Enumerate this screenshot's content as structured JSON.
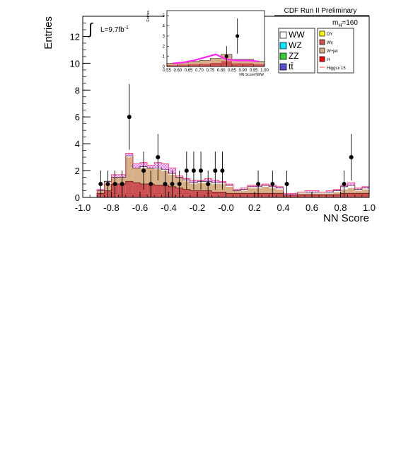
{
  "header": {
    "title": "CDF Run II Preliminary",
    "mass_label_prefix": "m",
    "mass_label_sub": "H",
    "mass_label_value": "=160",
    "lumi_prefix": "L=9.7fb",
    "lumi_sup": "-1"
  },
  "legend": {
    "left": [
      {
        "label": "WW",
        "color": "#ffffff"
      },
      {
        "label": "WZ",
        "color": "#00e5ff"
      },
      {
        "label": "ZZ",
        "color": "#33cc33"
      },
      {
        "label": "tt̄",
        "color": "#5050d0"
      }
    ],
    "right": [
      {
        "label": "DY",
        "color": "#ffff00"
      },
      {
        "label": "Wγ",
        "color": "#cc5050"
      },
      {
        "label": "W+jet",
        "color": "#d8b088"
      },
      {
        "label": "H",
        "color": "#ff0000"
      },
      {
        "label": "Higgsx 15",
        "color": "#ff4444"
      }
    ]
  },
  "chart_data": [
    {
      "type": "area",
      "title": "",
      "xlabel": "NN Score",
      "ylabel": "Entries",
      "xlim": [
        -1.0,
        1.0
      ],
      "ylim": [
        0,
        13.5
      ],
      "xticks": [
        "-1.0",
        "-0.8",
        "-0.6",
        "-0.4",
        "-0.2",
        "-0.0",
        "0.2",
        "0.4",
        "0.6",
        "0.8",
        "1.0"
      ],
      "yticks": [
        "0",
        "2",
        "4",
        "6",
        "8",
        "10",
        "12"
      ],
      "bin_width": 0.05,
      "bin_lo": [
        -0.9,
        -0.85,
        -0.8,
        -0.75,
        -0.7,
        -0.65,
        -0.6,
        -0.55,
        -0.5,
        -0.45,
        -0.4,
        -0.35,
        -0.3,
        -0.25,
        -0.2,
        -0.15,
        -0.1,
        -0.05,
        0.0,
        0.05,
        0.1,
        0.15,
        0.2,
        0.25,
        0.3,
        0.35,
        0.4,
        0.45,
        0.5,
        0.55,
        0.6,
        0.65,
        0.7,
        0.75,
        0.8,
        0.85,
        0.9,
        0.95
      ],
      "series": [
        {
          "name": "Wγ",
          "values": [
            0.3,
            0.5,
            1.0,
            1.0,
            1.2,
            1.1,
            1.0,
            1.0,
            0.9,
            0.9,
            0.8,
            0.7,
            0.6,
            0.5,
            0.5,
            0.5,
            0.4,
            0.4,
            0.3,
            0.3,
            0.3,
            0.3,
            0.3,
            0.3,
            0.3,
            0.3,
            0.2,
            0.2,
            0.2,
            0.2,
            0.2,
            0.2,
            0.2,
            0.2,
            0.3,
            0.3,
            0.3,
            0.3
          ]
        },
        {
          "name": "W+jet",
          "values": [
            0.2,
            0.5,
            0.5,
            0.5,
            1.8,
            1.1,
            1.2,
            1.2,
            1.2,
            1.1,
            0.9,
            0.8,
            0.6,
            0.5,
            0.6,
            0.6,
            0.6,
            0.6,
            0.5,
            0.2,
            0.2,
            0.4,
            0.4,
            0.5,
            0.4,
            0.3,
            0.0,
            0.0,
            0.1,
            0.1,
            0.1,
            0.1,
            0.1,
            0.2,
            0.3,
            0.4,
            0.2,
            0.3
          ]
        },
        {
          "name": "WW",
          "values": [
            0.0,
            0.2,
            0.0,
            0.0,
            0.1,
            0.0,
            0.1,
            0.0,
            0.1,
            0.1,
            0.1,
            0.0,
            0.1,
            0.1,
            0.1,
            0.1,
            0.1,
            0.1,
            0.1,
            0.0,
            0.1,
            0.1,
            0.1,
            0.1,
            0.1,
            0.1,
            0.0,
            0.0,
            0.1,
            0.1,
            0.1,
            0.1,
            0.1,
            0.1,
            0.2,
            0.2,
            0.1,
            0.1
          ]
        }
      ],
      "total_values": [
        0.5,
        1.2,
        1.5,
        1.5,
        3.1,
        2.2,
        2.3,
        2.2,
        2.2,
        2.1,
        1.8,
        1.5,
        1.3,
        1.1,
        1.2,
        1.2,
        1.1,
        1.1,
        0.9,
        0.5,
        0.6,
        0.8,
        0.8,
        0.9,
        0.8,
        0.7,
        0.2,
        0.2,
        0.4,
        0.4,
        0.4,
        0.4,
        0.4,
        0.5,
        0.8,
        0.9,
        0.6,
        0.7
      ],
      "signal_values": [
        0.6,
        1.1,
        1.7,
        1.7,
        3.3,
        2.5,
        2.6,
        2.4,
        2.6,
        2.5,
        2.2,
        1.6,
        1.4,
        1.3,
        1.3,
        1.4,
        1.3,
        1.2,
        1.0,
        0.6,
        0.7,
        0.9,
        0.9,
        1.0,
        0.9,
        0.8,
        0.3,
        0.3,
        0.4,
        0.5,
        0.5,
        0.4,
        0.5,
        0.6,
        0.9,
        1.1,
        0.7,
        0.8
      ],
      "data_points": [
        {
          "x": -0.875,
          "y": 1
        },
        {
          "x": -0.825,
          "y": 1
        },
        {
          "x": -0.775,
          "y": 1
        },
        {
          "x": -0.725,
          "y": 1
        },
        {
          "x": -0.675,
          "y": 6
        },
        {
          "x": -0.575,
          "y": 2
        },
        {
          "x": -0.525,
          "y": 1
        },
        {
          "x": -0.475,
          "y": 3
        },
        {
          "x": -0.425,
          "y": 1
        },
        {
          "x": -0.375,
          "y": 1
        },
        {
          "x": -0.325,
          "y": 1
        },
        {
          "x": -0.275,
          "y": 2
        },
        {
          "x": -0.225,
          "y": 2
        },
        {
          "x": -0.175,
          "y": 2
        },
        {
          "x": -0.125,
          "y": 1
        },
        {
          "x": -0.075,
          "y": 2
        },
        {
          "x": -0.025,
          "y": 2
        },
        {
          "x": 0.225,
          "y": 1
        },
        {
          "x": 0.325,
          "y": 1
        },
        {
          "x": 0.425,
          "y": 1
        },
        {
          "x": 0.825,
          "y": 1
        },
        {
          "x": 0.875,
          "y": 3
        }
      ]
    },
    {
      "type": "area",
      "title": "",
      "xlabel": "NN ScoreHWW",
      "ylabel": "Entries",
      "xlim": [
        0.55,
        1.0
      ],
      "ylim": [
        0,
        5.5
      ],
      "xticks": [
        "0.55",
        "0.60",
        "0.65",
        "0.70",
        "0.75",
        "0.80",
        "0.85",
        "0.90",
        "0.95",
        "1.00"
      ],
      "yticks": [
        "0",
        "1",
        "2",
        "3",
        "4",
        "5"
      ],
      "bin_width": 0.05,
      "bin_lo": [
        0.55,
        0.6,
        0.65,
        0.7,
        0.75,
        0.8,
        0.85,
        0.9,
        0.95
      ],
      "total_values": [
        0.3,
        0.4,
        0.5,
        0.6,
        0.8,
        1.2,
        0.7,
        0.7,
        0.5
      ],
      "signal_line": [
        0.3,
        0.4,
        0.6,
        0.9,
        1.2,
        0.7,
        0.6,
        0.6,
        0.5
      ],
      "data_points": [
        {
          "x": 0.825,
          "y": 1
        },
        {
          "x": 0.875,
          "y": 3
        }
      ]
    }
  ]
}
